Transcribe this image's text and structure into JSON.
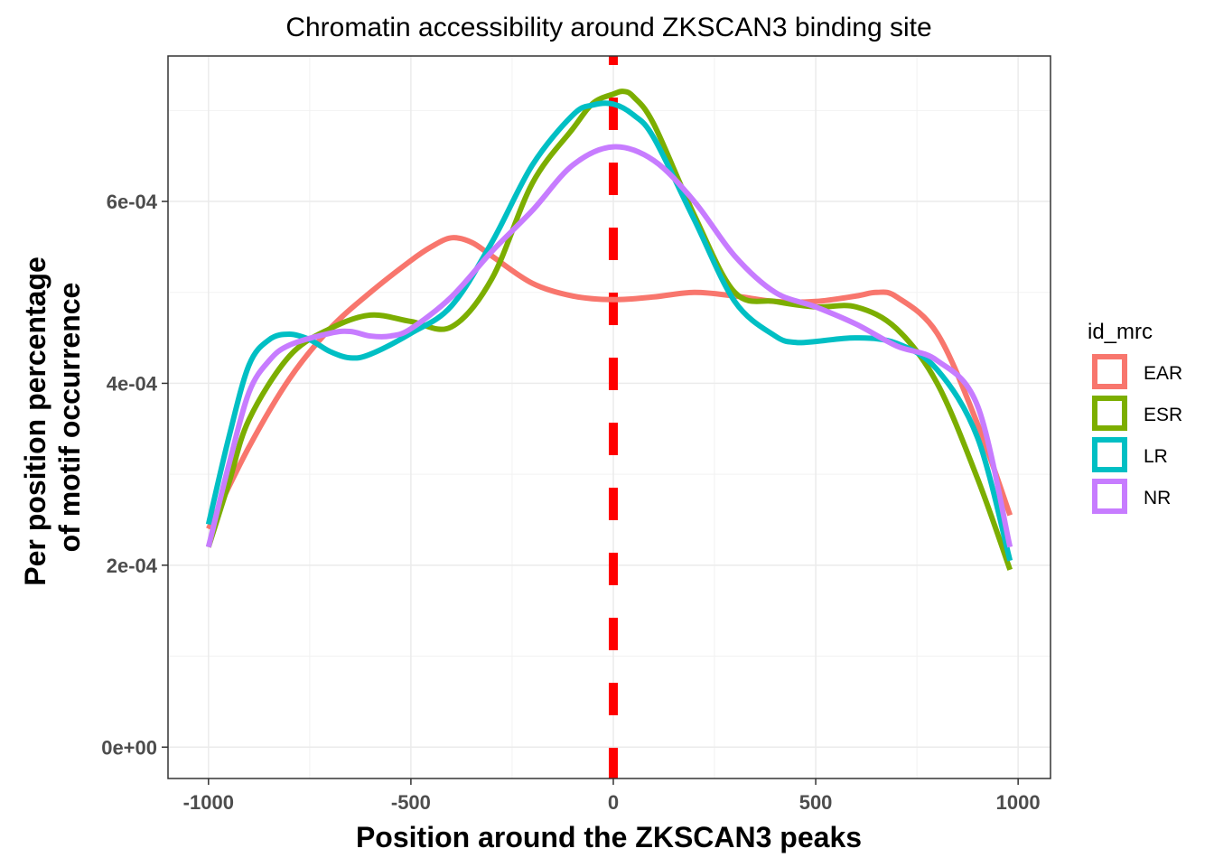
{
  "chart_data": {
    "type": "line",
    "title": "Chromatin accessibility around ZKSCAN3 binding site",
    "xlabel": "Position around the ZKSCAN3 peaks",
    "ylabel_lines": [
      "Per position percentage",
      "of motif occurrence"
    ],
    "xlim": [
      -1100,
      1080
    ],
    "ylim": [
      -3.45e-05,
      0.0007599
    ],
    "x_ticks": [
      -1000,
      -500,
      0,
      500,
      1000
    ],
    "x_tick_labels": [
      "-1000",
      "-500",
      "0",
      "500",
      "1000"
    ],
    "y_ticks": [
      0,
      0.0002,
      0.0004,
      0.0006
    ],
    "y_tick_labels": [
      "0e+00",
      "2e-04",
      "4e-04",
      "6e-04"
    ],
    "grid": true,
    "legend_title": "id_mrc",
    "legend_position": "right",
    "vline": {
      "x": 0,
      "color": "#FF0000",
      "style": "dashed"
    },
    "series": [
      {
        "name": "EAR",
        "color": "#F8766D",
        "x": [
          -1000,
          -900,
          -800,
          -700,
          -600,
          -500,
          -450,
          -400,
          -350,
          -300,
          -200,
          -100,
          0,
          100,
          200,
          300,
          400,
          500,
          600,
          650,
          700,
          800,
          900,
          980
        ],
        "y": [
          0.00024,
          0.00033,
          0.000405,
          0.00046,
          0.0005,
          0.000535,
          0.00055,
          0.00056,
          0.000555,
          0.00054,
          0.00051,
          0.000496,
          0.000492,
          0.000495,
          0.0005,
          0.000496,
          0.00049,
          0.00049,
          0.000496,
          0.0005,
          0.000495,
          0.000455,
          0.000355,
          0.000255
        ]
      },
      {
        "name": "ESR",
        "color": "#7CAE00",
        "x": [
          -1000,
          -950,
          -900,
          -800,
          -700,
          -600,
          -500,
          -400,
          -300,
          -200,
          -100,
          -50,
          0,
          25,
          50,
          100,
          200,
          300,
          400,
          500,
          600,
          700,
          800,
          900,
          980
        ],
        "y": [
          0.00022,
          0.00029,
          0.00036,
          0.00043,
          0.00046,
          0.000475,
          0.000468,
          0.000462,
          0.000515,
          0.00062,
          0.00068,
          0.000708,
          0.000718,
          0.000721,
          0.000715,
          0.000685,
          0.000585,
          0.0005,
          0.00049,
          0.000484,
          0.000484,
          0.00046,
          0.0004,
          0.000295,
          0.000195
        ]
      },
      {
        "name": "LR",
        "color": "#00BFC4",
        "x": [
          -1000,
          -950,
          -900,
          -850,
          -800,
          -750,
          -700,
          -650,
          -600,
          -500,
          -400,
          -300,
          -200,
          -100,
          -50,
          0,
          50,
          100,
          200,
          300,
          400,
          450,
          500,
          600,
          700,
          800,
          900,
          980
        ],
        "y": [
          0.000245,
          0.00034,
          0.00042,
          0.000448,
          0.000454,
          0.000448,
          0.000435,
          0.000428,
          0.000432,
          0.000455,
          0.000485,
          0.000555,
          0.00064,
          0.000695,
          0.000706,
          0.000707,
          0.000695,
          0.00067,
          0.00058,
          0.00049,
          0.000452,
          0.000445,
          0.000446,
          0.00045,
          0.000444,
          0.000415,
          0.00034,
          0.000205
        ]
      },
      {
        "name": "NR",
        "color": "#C77CFF",
        "x": [
          -1000,
          -950,
          -900,
          -850,
          -800,
          -700,
          -650,
          -600,
          -550,
          -500,
          -400,
          -300,
          -200,
          -100,
          0,
          100,
          200,
          300,
          400,
          500,
          600,
          700,
          800,
          900,
          980
        ],
        "y": [
          0.00022,
          0.00031,
          0.00039,
          0.000425,
          0.000442,
          0.000455,
          0.000457,
          0.000452,
          0.000452,
          0.00046,
          0.000495,
          0.000545,
          0.00059,
          0.00064,
          0.00066,
          0.000645,
          0.0006,
          0.00054,
          0.0005,
          0.000484,
          0.000465,
          0.000441,
          0.000425,
          0.000375,
          0.00022
        ]
      }
    ]
  }
}
